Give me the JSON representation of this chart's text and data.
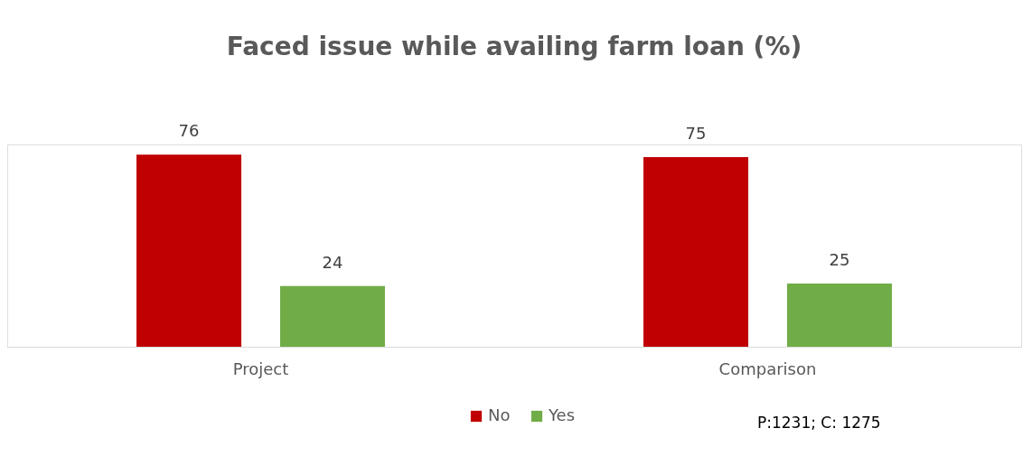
{
  "chart_data": {
    "type": "bar",
    "title": "Faced issue while availing farm loan (%)",
    "categories": [
      "Project",
      "Comparison"
    ],
    "series": [
      {
        "name": "No",
        "color": "#c00000",
        "values": [
          76,
          75
        ]
      },
      {
        "name": "Yes",
        "color": "#70ad47",
        "values": [
          24,
          25
        ]
      }
    ],
    "data_labels": true,
    "legend": "bottom",
    "grid": false,
    "annotations": [
      "P:1231; C: 1275"
    ]
  }
}
